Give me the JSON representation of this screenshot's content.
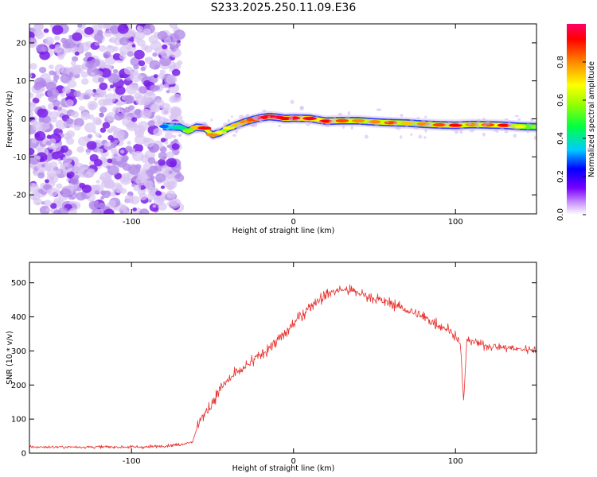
{
  "title": "S233.2025.250.11.09.E36",
  "chart_data": [
    {
      "type": "heatmap",
      "name": "spectrogram",
      "xlabel": "Height of straight line (km)",
      "ylabel": "Frequency (Hz)",
      "xlim": [
        -163,
        150
      ],
      "ylim": [
        -25,
        25
      ],
      "xticks": [
        -100,
        0,
        100
      ],
      "xtick_labels": [
        "-100",
        "0",
        "100"
      ],
      "yticks": [
        -20,
        -10,
        0,
        10,
        20
      ],
      "ytick_labels": [
        "-20",
        "-10",
        "0",
        "10",
        "20"
      ],
      "noise_region_x": [
        -163,
        -70
      ],
      "ridge": {
        "description": "signal ridge frequency vs height",
        "x": [
          -80,
          -70,
          -65,
          -60,
          -55,
          -50,
          -45,
          -40,
          -35,
          -30,
          -25,
          -20,
          -15,
          -10,
          -5,
          0,
          10,
          20,
          30,
          40,
          50,
          60,
          70,
          80,
          90,
          100,
          110,
          120,
          130,
          140,
          150
        ],
        "y": [
          -2,
          -2.2,
          -3.2,
          -2.2,
          -2.4,
          -4.2,
          -3.6,
          -2.4,
          -1.6,
          -0.8,
          -0.2,
          0.3,
          0.6,
          0.4,
          0.1,
          0.2,
          0.1,
          -0.6,
          -0.5,
          -0.5,
          -0.8,
          -1.0,
          -1.1,
          -1.4,
          -1.6,
          -1.7,
          -1.5,
          -1.6,
          -1.7,
          -2.0,
          -2.1
        ],
        "peak_amplitude": [
          0.35,
          0.45,
          0.6,
          0.75,
          0.9,
          0.8,
          0.7,
          0.7,
          0.75,
          0.8,
          0.85,
          0.9,
          0.95,
          0.95,
          0.9,
          0.95,
          0.95,
          0.9,
          0.85,
          0.8,
          0.8,
          0.85,
          0.75,
          0.8,
          0.85,
          0.9,
          0.8,
          0.85,
          0.9,
          0.7,
          0.6
        ]
      },
      "colorbar": {
        "label": "Normalized spectral amplitude",
        "range": [
          0,
          1
        ],
        "ticks": [
          0.0,
          0.2,
          0.4,
          0.6,
          0.8
        ],
        "tick_labels": [
          "0.0",
          "0.2",
          "0.4",
          "0.6",
          "0.8"
        ],
        "colors": [
          "#ffffff",
          "#cc99ff",
          "#7700ff",
          "#0000ff",
          "#00ccff",
          "#00ff44",
          "#99ff00",
          "#ffff00",
          "#ff8800",
          "#ff0000",
          "#ff0066"
        ]
      }
    },
    {
      "type": "line",
      "name": "snr",
      "xlabel": "Height of straight line (km)",
      "ylabel": "SNR (10 * v/v)",
      "xlim": [
        -163,
        150
      ],
      "ylim": [
        0,
        560
      ],
      "xticks": [
        -100,
        0,
        100
      ],
      "xtick_labels": [
        "-100",
        "0",
        "100"
      ],
      "yticks": [
        0,
        100,
        200,
        300,
        400,
        500
      ],
      "ytick_labels": [
        "0",
        "100",
        "200",
        "300",
        "400",
        "500"
      ],
      "color": "#e8302c",
      "series": [
        {
          "name": "SNR",
          "x": [
            -163,
            -150,
            -130,
            -110,
            -90,
            -70,
            -62,
            -58,
            -55,
            -50,
            -45,
            -40,
            -35,
            -30,
            -25,
            -20,
            -15,
            -10,
            -5,
            0,
            5,
            10,
            15,
            20,
            25,
            30,
            35,
            40,
            45,
            50,
            55,
            60,
            70,
            80,
            90,
            95,
            100,
            103,
            105,
            107,
            110,
            115,
            120,
            130,
            140,
            150
          ],
          "y": [
            18,
            18,
            18,
            18,
            18,
            25,
            35,
            100,
            110,
            150,
            190,
            215,
            235,
            250,
            270,
            290,
            310,
            330,
            350,
            380,
            405,
            430,
            450,
            465,
            475,
            480,
            478,
            470,
            462,
            455,
            445,
            440,
            420,
            400,
            375,
            365,
            345,
            320,
            150,
            330,
            330,
            320,
            315,
            310,
            305,
            305
          ]
        }
      ]
    }
  ]
}
